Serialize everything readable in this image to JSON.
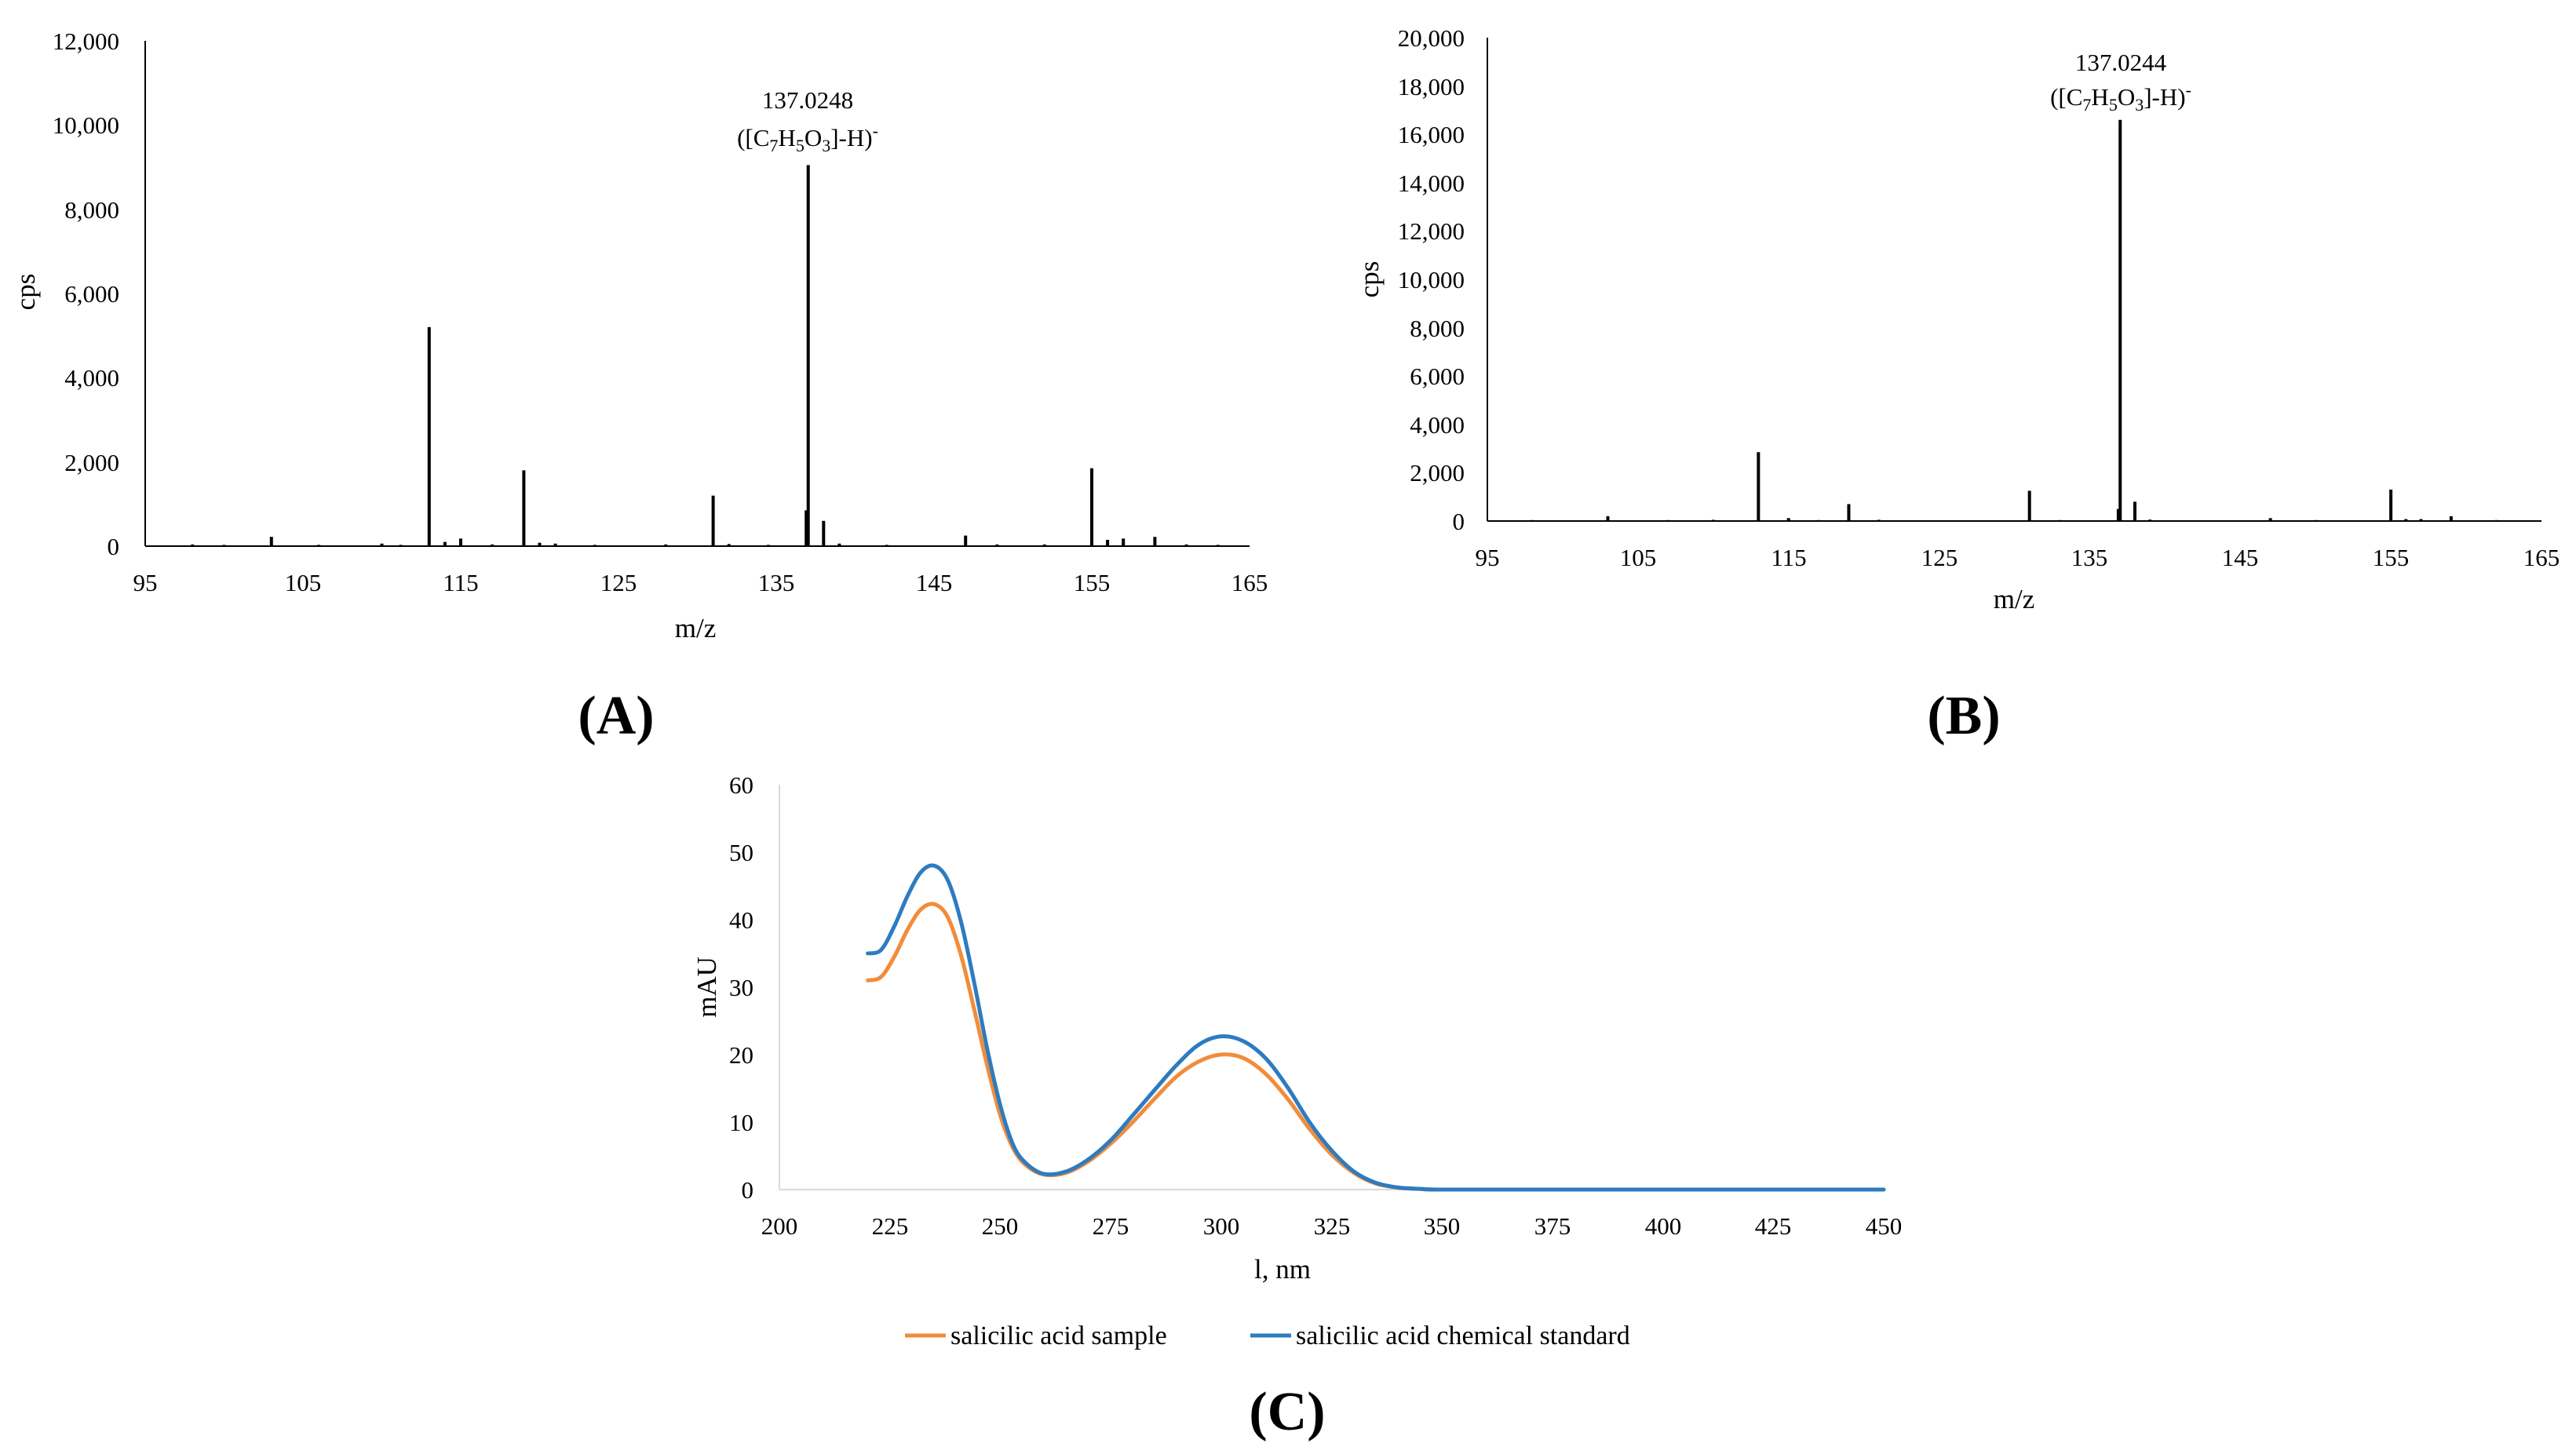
{
  "colors": {
    "orange": "#F28C3A",
    "blue": "#2E7BBF",
    "axis": "#000000",
    "spectrum": "#000000"
  },
  "panels": {
    "a": "(A)",
    "b": "(B)",
    "c": "(C)"
  },
  "chart_data": [
    {
      "id": "A",
      "type": "bar",
      "title": "",
      "xlabel": "m/z",
      "ylabel": "cps",
      "xlim": [
        95,
        165
      ],
      "ylim": [
        0,
        12000
      ],
      "xticks": [
        "95",
        "105",
        "115",
        "125",
        "135",
        "145",
        "155",
        "165"
      ],
      "yticks": [
        "0",
        "2,000",
        "4,000",
        "6,000",
        "8,000",
        "10,000",
        "12,000"
      ],
      "annotation": {
        "mz": "137.0248",
        "formula_open": "([C",
        "s1": "7",
        "h": "H",
        "s2": "5",
        "o": "O",
        "s3": "3",
        "close": "]-H)",
        "sup": "-"
      },
      "peaks": [
        {
          "mz": 98.0,
          "cps": 40
        },
        {
          "mz": 100.0,
          "cps": 30
        },
        {
          "mz": 103.0,
          "cps": 220
        },
        {
          "mz": 106.0,
          "cps": 30
        },
        {
          "mz": 110.0,
          "cps": 60
        },
        {
          "mz": 111.2,
          "cps": 30
        },
        {
          "mz": 113.0,
          "cps": 5200
        },
        {
          "mz": 114.0,
          "cps": 100
        },
        {
          "mz": 115.0,
          "cps": 180
        },
        {
          "mz": 117.0,
          "cps": 40
        },
        {
          "mz": 119.0,
          "cps": 1800
        },
        {
          "mz": 120.0,
          "cps": 80
        },
        {
          "mz": 121.0,
          "cps": 60
        },
        {
          "mz": 123.5,
          "cps": 30
        },
        {
          "mz": 128.0,
          "cps": 40
        },
        {
          "mz": 131.0,
          "cps": 1200
        },
        {
          "mz": 132.0,
          "cps": 50
        },
        {
          "mz": 134.5,
          "cps": 30
        },
        {
          "mz": 136.9,
          "cps": 850
        },
        {
          "mz": 137.0248,
          "cps": 9050
        },
        {
          "mz": 138.0,
          "cps": 600
        },
        {
          "mz": 139.0,
          "cps": 60
        },
        {
          "mz": 142.0,
          "cps": 30
        },
        {
          "mz": 147.0,
          "cps": 250
        },
        {
          "mz": 149.0,
          "cps": 40
        },
        {
          "mz": 152.0,
          "cps": 40
        },
        {
          "mz": 155.0,
          "cps": 1850
        },
        {
          "mz": 156.0,
          "cps": 150
        },
        {
          "mz": 157.0,
          "cps": 180
        },
        {
          "mz": 159.0,
          "cps": 220
        },
        {
          "mz": 161.0,
          "cps": 40
        },
        {
          "mz": 163.0,
          "cps": 30
        }
      ]
    },
    {
      "id": "B",
      "type": "bar",
      "title": "",
      "xlabel": "m/z",
      "ylabel": "cps",
      "xlim": [
        95,
        165
      ],
      "ylim": [
        0,
        20000
      ],
      "xticks": [
        "95",
        "105",
        "115",
        "125",
        "135",
        "145",
        "155",
        "165"
      ],
      "yticks": [
        "0",
        "2,000",
        "4,000",
        "6,000",
        "8,000",
        "10,000",
        "12,000",
        "14,000",
        "16,000",
        "18,000",
        "20,000"
      ],
      "annotation": {
        "mz": "137.0244",
        "formula_open": "([C",
        "s1": "7",
        "h": "H",
        "s2": "5",
        "o": "O",
        "s3": "3",
        "close": "]-H)",
        "sup": "-"
      },
      "peaks": [
        {
          "mz": 98.0,
          "cps": 40
        },
        {
          "mz": 103.0,
          "cps": 200
        },
        {
          "mz": 107.0,
          "cps": 40
        },
        {
          "mz": 110.0,
          "cps": 50
        },
        {
          "mz": 113.0,
          "cps": 2850
        },
        {
          "mz": 115.0,
          "cps": 120
        },
        {
          "mz": 117.0,
          "cps": 40
        },
        {
          "mz": 119.0,
          "cps": 700
        },
        {
          "mz": 121.0,
          "cps": 50
        },
        {
          "mz": 124.0,
          "cps": 30
        },
        {
          "mz": 131.0,
          "cps": 1250
        },
        {
          "mz": 133.0,
          "cps": 40
        },
        {
          "mz": 136.9,
          "cps": 500
        },
        {
          "mz": 137.0244,
          "cps": 16600
        },
        {
          "mz": 138.0,
          "cps": 800
        },
        {
          "mz": 139.0,
          "cps": 60
        },
        {
          "mz": 143.0,
          "cps": 30
        },
        {
          "mz": 147.0,
          "cps": 120
        },
        {
          "mz": 150.0,
          "cps": 40
        },
        {
          "mz": 155.0,
          "cps": 1300
        },
        {
          "mz": 156.0,
          "cps": 80
        },
        {
          "mz": 157.0,
          "cps": 80
        },
        {
          "mz": 159.0,
          "cps": 200
        },
        {
          "mz": 162.0,
          "cps": 40
        }
      ]
    },
    {
      "id": "C",
      "type": "line",
      "title": "",
      "xlabel": "l, nm",
      "ylabel": "mAU",
      "xlim": [
        200,
        450
      ],
      "ylim": [
        0,
        60
      ],
      "xticks": [
        "200",
        "225",
        "250",
        "275",
        "300",
        "325",
        "350",
        "375",
        "400",
        "425",
        "450"
      ],
      "yticks": [
        "0",
        "10",
        "20",
        "30",
        "40",
        "50",
        "60"
      ],
      "legend_position": "bottom",
      "series": [
        {
          "name": "salicilic acid sample",
          "color": "#F28C3A",
          "x": [
            220,
            223,
            226,
            229,
            232,
            235,
            238,
            241,
            244,
            247,
            250,
            253,
            256,
            260,
            265,
            270,
            275,
            280,
            285,
            290,
            295,
            300,
            305,
            310,
            315,
            320,
            325,
            330,
            335,
            340,
            345,
            350,
            375,
            400,
            425,
            450
          ],
          "y": [
            31,
            31.5,
            34.5,
            38.5,
            41.5,
            42.3,
            40.5,
            35,
            27,
            18.5,
            11,
            6,
            3.5,
            2.2,
            2.5,
            4.2,
            6.8,
            10,
            13.5,
            16.8,
            19,
            20,
            19.5,
            17.2,
            13.5,
            9,
            5.2,
            2.5,
            0.9,
            0.3,
            0.1,
            0,
            0,
            0,
            0,
            0
          ]
        },
        {
          "name": "salicilic acid chemical standard",
          "color": "#2E7BBF",
          "x": [
            220,
            223,
            226,
            229,
            232,
            235,
            238,
            241,
            244,
            247,
            250,
            253,
            256,
            260,
            265,
            270,
            275,
            280,
            285,
            290,
            295,
            300,
            305,
            310,
            315,
            320,
            325,
            330,
            335,
            340,
            345,
            350,
            375,
            400,
            425,
            450
          ],
          "y": [
            35,
            35.5,
            39,
            43.5,
            47,
            48,
            46,
            40,
            31,
            21,
            12.5,
            6.5,
            3.8,
            2.3,
            2.7,
            4.5,
            7.3,
            11,
            14.8,
            18.5,
            21.5,
            22.7,
            22,
            19.5,
            15.2,
            10,
            5.8,
            2.7,
            1,
            0.3,
            0.1,
            0,
            0,
            0,
            0,
            0
          ]
        }
      ]
    }
  ]
}
